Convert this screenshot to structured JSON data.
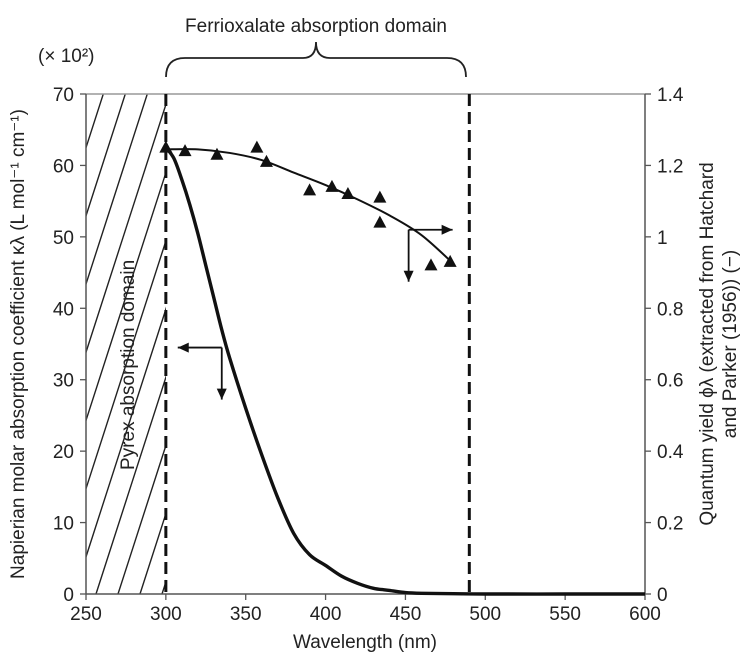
{
  "chart_data": {
    "type": "line",
    "title": "Ferrioxalate absorption domain",
    "xlabel": "Wavelength (nm)",
    "ylabel_left": "Napierian molar absorption coefficient κλ (L mol⁻¹ cm⁻¹)",
    "ylabel_left_multiplier": "(× 10²)",
    "ylabel_right_line1": "Quantum yield ϕλ (extracted from Hatchard",
    "ylabel_right_line2": "and Parker (1956)) (−)",
    "xlim": [
      250,
      600
    ],
    "ylim_left": [
      0,
      70
    ],
    "ylim_right": [
      0,
      1.4
    ],
    "x_ticks": [
      "250",
      "300",
      "350",
      "400",
      "450",
      "500",
      "550",
      "600"
    ],
    "y_left_ticks": [
      "0",
      "10",
      "20",
      "30",
      "40",
      "50",
      "60",
      "70"
    ],
    "y_right_ticks": [
      "0",
      "0.2",
      "0.4",
      "0.6",
      "0.8",
      "1",
      "1.2",
      "1.4"
    ],
    "annotations": {
      "pyrex": "Pyrex absorption domain"
    },
    "domains": {
      "pyrex_end": 300,
      "ferrioxalate_start": 300,
      "ferrioxalate_end": 490
    },
    "series": [
      {
        "kind": "absorption-coefficient",
        "axis": "left",
        "x": [
          300,
          305,
          310,
          315,
          320,
          325,
          330,
          335,
          340,
          350,
          360,
          370,
          380,
          390,
          400,
          410,
          420,
          430,
          440,
          450,
          460,
          480,
          500,
          550,
          600
        ],
        "y": [
          62.5,
          61,
          58,
          54.5,
          50.5,
          46,
          41.5,
          37,
          33,
          26,
          19.5,
          13.5,
          8.5,
          5.5,
          4,
          2.5,
          1.5,
          0.8,
          0.5,
          0.2,
          0.1,
          0.05,
          0,
          0,
          0
        ]
      },
      {
        "kind": "quantum-yield-fit",
        "axis": "right",
        "x": [
          300,
          320,
          340,
          360,
          380,
          400,
          420,
          440,
          460,
          480
        ],
        "y": [
          1.245,
          1.245,
          1.235,
          1.215,
          1.18,
          1.145,
          1.105,
          1.06,
          1.005,
          0.925
        ]
      },
      {
        "kind": "quantum-yield-data",
        "axis": "right",
        "marker": "triangle",
        "x": [
          300,
          312,
          332,
          357,
          363,
          390,
          404,
          414,
          434,
          434,
          466,
          478
        ],
        "y": [
          1.25,
          1.24,
          1.23,
          1.25,
          1.21,
          1.13,
          1.14,
          1.12,
          1.11,
          1.04,
          0.92,
          0.93
        ]
      }
    ],
    "arrows": [
      {
        "anchor_x": 335,
        "anchor_y_left": 34.5,
        "direction": [
          "left",
          "down"
        ],
        "axis": "left"
      },
      {
        "anchor_x": 452,
        "anchor_y_left": 51,
        "direction": [
          "right",
          "down"
        ],
        "axis": "right"
      }
    ]
  }
}
